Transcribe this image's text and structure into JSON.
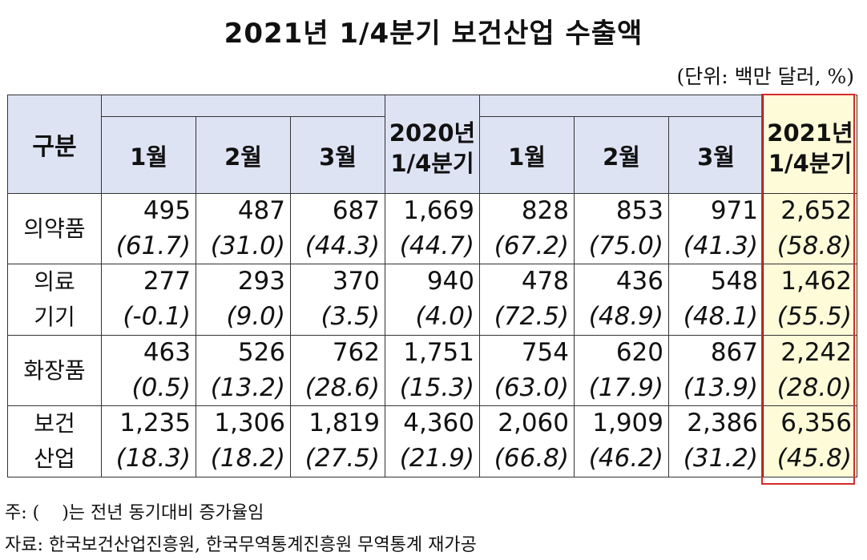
{
  "title": "2021년 1/4분기 보건산업 수출액",
  "unit": "(단위: 백만 달러, %)",
  "table": {
    "corner_label": "구분",
    "columns": [
      "1월",
      "2월",
      "3월",
      "2020년\n1/4분기",
      "1월",
      "2월",
      "3월",
      "2021년\n1/4분기"
    ],
    "rows": [
      {
        "label": "의약품",
        "values": [
          "495",
          "487",
          "687",
          "1,669",
          "828",
          "853",
          "971",
          "2,652"
        ],
        "changes": [
          "(61.7)",
          "(31.0)",
          "(44.3)",
          "(44.7)",
          "(67.2)",
          "(75.0)",
          "(41.3)",
          "(58.8)"
        ]
      },
      {
        "label": "의료\n기기",
        "values": [
          "277",
          "293",
          "370",
          "940",
          "478",
          "436",
          "548",
          "1,462"
        ],
        "changes": [
          "(-0.1)",
          "(9.0)",
          "(3.5)",
          "(4.0)",
          "(72.5)",
          "(48.9)",
          "(48.1)",
          "(55.5)"
        ]
      },
      {
        "label": "화장품",
        "values": [
          "463",
          "526",
          "762",
          "1,751",
          "754",
          "620",
          "867",
          "2,242"
        ],
        "changes": [
          "(0.5)",
          "(13.2)",
          "(28.6)",
          "(15.3)",
          "(63.0)",
          "(17.9)",
          "(13.9)",
          "(28.0)"
        ]
      },
      {
        "label": "보건\n산업",
        "values": [
          "1,235",
          "1,306",
          "1,819",
          "4,360",
          "2,060",
          "1,909",
          "2,386",
          "6,356"
        ],
        "changes": [
          "(18.3)",
          "(18.2)",
          "(27.5)",
          "(21.9)",
          "(66.8)",
          "(46.2)",
          "(31.2)",
          "(45.8)"
        ]
      }
    ]
  },
  "notes": [
    "주: (    )는 전년 동기대비 증가율임",
    "자료: 한국보건산업진흥원, 한국무역통계진흥원 무역통계 재가공"
  ],
  "colors": {
    "header_bg": "#dee3f4",
    "highlight_bg": "#fdfbd8",
    "highlight_border": "#d52a2a"
  }
}
